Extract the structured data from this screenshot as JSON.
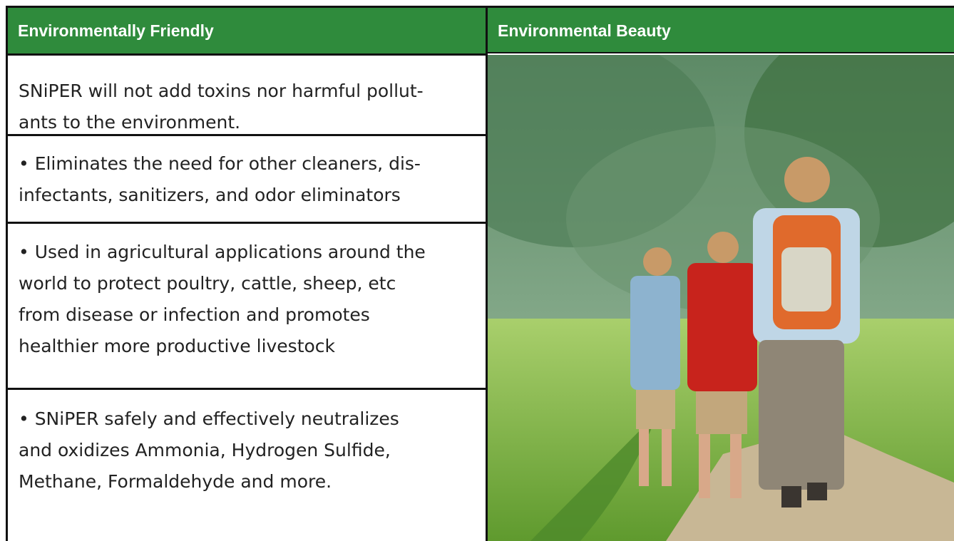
{
  "table": {
    "headers": [
      "Environmentally Friendly",
      "Environmental Beauty"
    ],
    "rows": [
      {
        "lines": [
          "SNiPER will not add toxins nor harmful pollut-",
          "ants to the environment."
        ]
      },
      {
        "lines": [
          "• Eliminates the need for other cleaners, dis-",
          "infectants, sanitizers, and odor eliminators"
        ]
      },
      {
        "lines": [
          "• Used in agricultural applications around the",
          "world to protect poultry, cattle, sheep, etc",
          "from disease or infection and promotes",
          "healthier more productive livestock"
        ]
      },
      {
        "lines": [
          "• SNiPER safely and effectively neutralizes",
          "and oxidizes Ammonia, Hydrogen Sulfide,",
          "Methane, Formaldehyde and more."
        ]
      }
    ]
  }
}
